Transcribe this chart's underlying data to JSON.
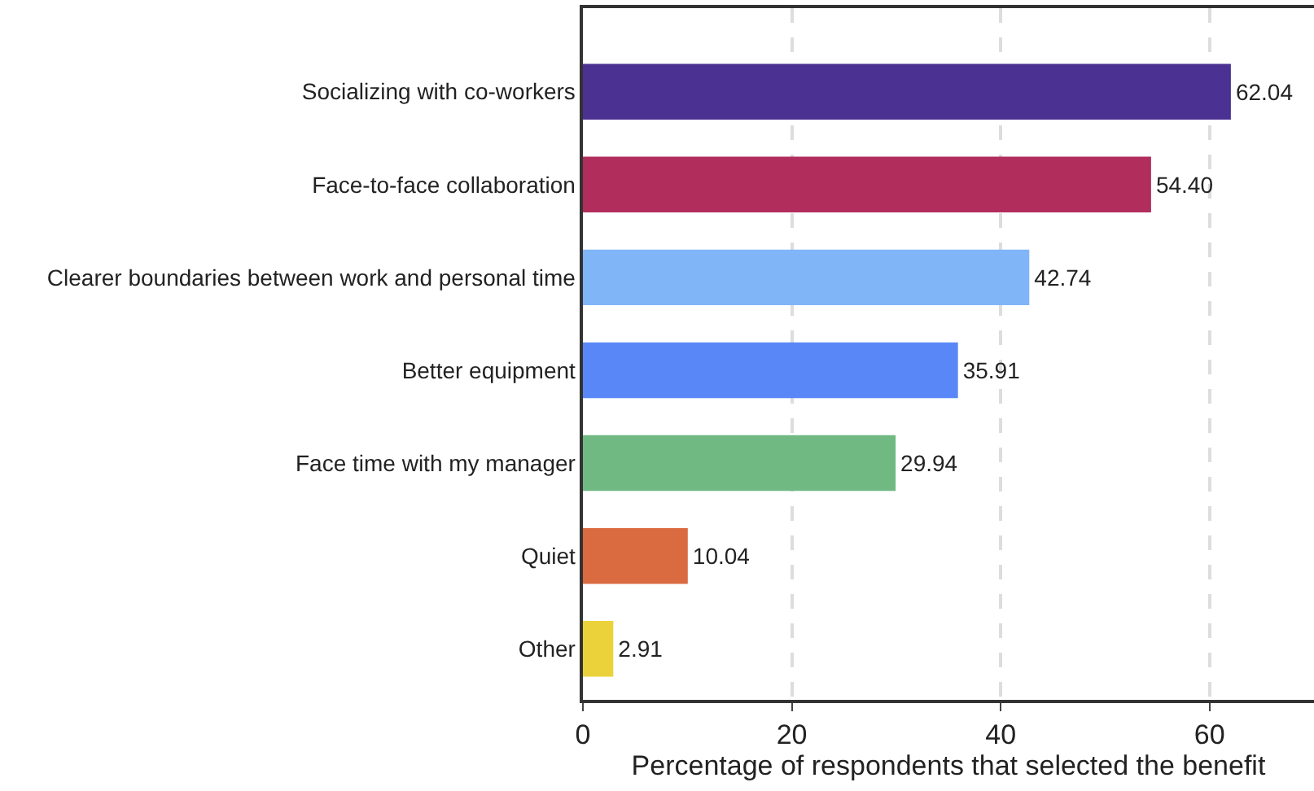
{
  "chart_data": {
    "type": "bar",
    "orientation": "horizontal",
    "categories": [
      "Socializing with co-workers",
      "Face-to-face collaboration",
      "Clearer boundaries between work and personal time",
      "Better equipment",
      "Face time with my manager",
      "Quiet",
      "Other"
    ],
    "values": [
      62.04,
      54.4,
      42.74,
      35.91,
      29.94,
      10.04,
      2.91
    ],
    "colors": [
      "#4b3192",
      "#b12d5b",
      "#80b5f8",
      "#5a87f7",
      "#70b983",
      "#da6a40",
      "#ecd23a"
    ],
    "value_labels": [
      "62.04",
      "54.40",
      "42.74",
      "35.91",
      "29.94",
      "10.04",
      "2.91"
    ],
    "xlabel": "Percentage of respondents that selected the benefit",
    "xlim": [
      0,
      70
    ],
    "xticks": [
      0,
      20,
      40,
      60
    ],
    "grid": "x",
    "legend": false
  }
}
